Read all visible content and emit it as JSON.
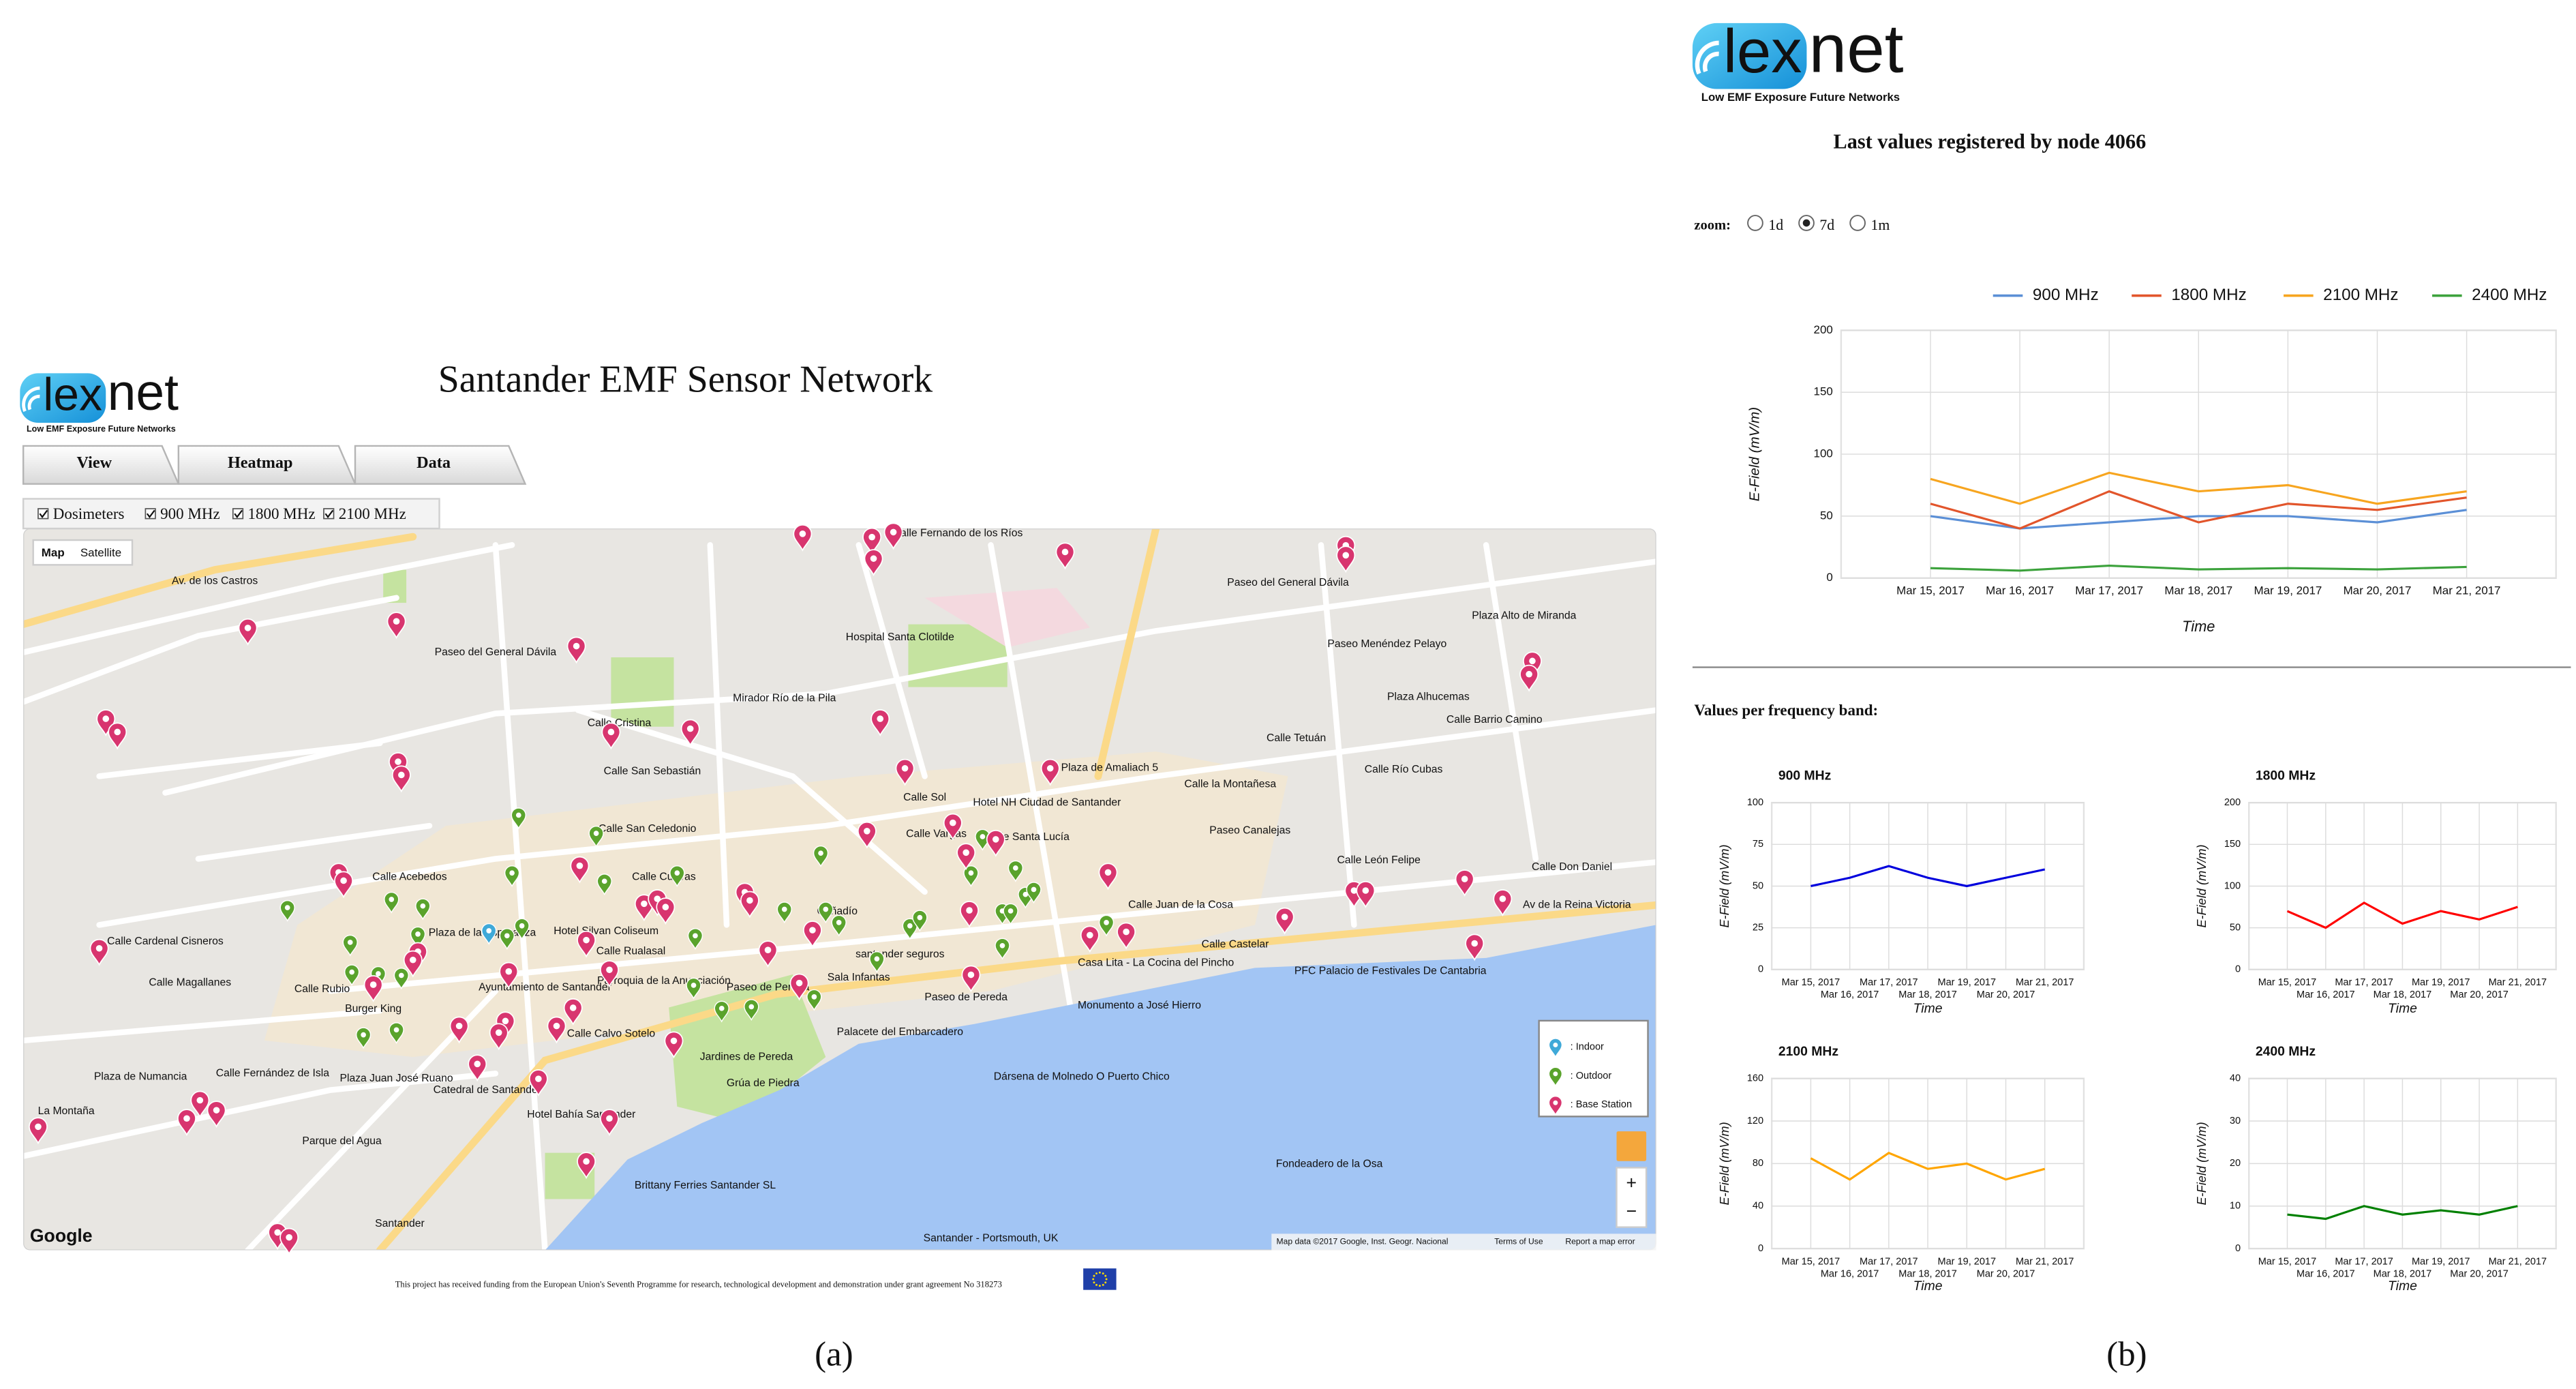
{
  "panel_a": {
    "logo": {
      "mark": "lex",
      "name": "net",
      "tagline": "Low EMF Exposure Future Networks"
    },
    "title": "Santander EMF Sensor Network",
    "tabs": [
      "View",
      "Heatmap",
      "Data"
    ],
    "layers": [
      "Dosimeters",
      "900 MHz",
      "1800 MHz",
      "2100 MHz"
    ],
    "map": {
      "types": [
        "Map",
        "Satellite"
      ],
      "labels": [
        "Av. de los Castros",
        "Calle Fernando de los Ríos",
        "Paseo del General Dávila",
        "Plaza Alto de Miranda",
        "Hospital Santa Clotilde",
        "Paseo Menéndez Pelayo",
        "Paseo del General Dávila",
        "Plaza Alhucemas",
        "Calle Barrio Camino",
        "Mirador Río de la Pila",
        "Calle Tetuán",
        "Plaza de Amaliach 5",
        "Hotel NH Ciudad de Santander",
        "Calle Sol",
        "Calle Río Cubas",
        "Calle la Montañesa",
        "Paseo Canalejas",
        "Calle Santa Lucía",
        "Calle León Felipe",
        "Calle Don Daniel",
        "Calle San Celedonio",
        "Calle Cuevas",
        "Calle Juan de la Cosa",
        "Calle Castelar",
        "Av de la Reina Victoria",
        "Plaza de la Esperanza",
        "Hotel Silvan Coliseum",
        "Calle Rualasal",
        "Cañadío",
        "santander seguros",
        "Sala Infantas",
        "Casa Lita - La Cocina del Pincho",
        "PFC Palacio de Festivales De Cantabria",
        "Ayuntamiento de Santander",
        "Parroquia de la Anunciación",
        "Paseo de Pereda",
        "Monumento a José Hierro",
        "Calle Magallanes",
        "Calle Calvo Sotelo",
        "Palacete del Embarcadero",
        "Jardines de Pereda",
        "Dársena de Molnedo O Puerto Chico",
        "Grúa de Piedra",
        "Plaza de Numancia",
        "Plaza Juan José Ruano",
        "Catedral de Santander",
        "Calle Fernández de Isla",
        "Hotel Bahía Santander",
        "La Montaña",
        "Parque del Agua",
        "Fondeadero de la Osa",
        "Brittany Ferries Santander SL",
        "Santander",
        "Burger King",
        "Calle Rubio",
        "Calle Cardenal Cisneros",
        "Calle Acebedos",
        "Calle Vargas",
        "Santander - Portsmouth, UK",
        "Calle Cristina",
        "Calle San Sebastián",
        "Paseo de Pereda"
      ],
      "legend": [
        ": Indoor",
        ": Outdoor",
        ": Base Station"
      ],
      "zoom": [
        "+",
        "−"
      ],
      "brand": "Google",
      "attribution": "Map data ©2017 Google, Inst. Geogr. Nacional",
      "links": [
        "Terms of Use",
        "Report a map error"
      ]
    },
    "funding": "This project has received funding from the European Union's Seventh Programme for research, technological development and demonstration under grant agreement No 318273",
    "caption": "(a)"
  },
  "panel_b": {
    "logo": {
      "mark": "lex",
      "name": "net",
      "tagline": "Low EMF Exposure Future Networks"
    },
    "zoom_label": "zoom:",
    "zoom_options": [
      "1d",
      "7d",
      "1m"
    ],
    "zoom_selected": "7d",
    "section_title": "Values per frequency band:",
    "caption": "(b)"
  },
  "chart_data": [
    {
      "type": "line",
      "title": "Last values registered by node 4066",
      "y_label": "E-Field (mV/m)",
      "x_label": "Time",
      "x": [
        "2017-03-15",
        "2017-03-16",
        "2017-03-17",
        "2017-03-18",
        "2017-03-19",
        "2017-03-20",
        "2017-03-21"
      ],
      "xlim": [
        "2017-03-14",
        "2017-03-22"
      ],
      "xticks": [
        {
          "value": "2017-03-15",
          "label": "Mar 15, 2017"
        },
        {
          "value": "2017-03-16",
          "label": "Mar 16, 2017"
        },
        {
          "value": "2017-03-17",
          "label": "Mar 17, 2017"
        },
        {
          "value": "2017-03-18",
          "label": "Mar 18, 2017"
        },
        {
          "value": "2017-03-19",
          "label": "Mar 19, 2017"
        },
        {
          "value": "2017-03-20",
          "label": "Mar 20, 2017"
        },
        {
          "value": "2017-03-21",
          "label": "Mar 21, 2017"
        }
      ],
      "ylim": [
        0,
        200
      ],
      "yticks": [
        0,
        50,
        100,
        150,
        200
      ],
      "grid": true,
      "series": [
        {
          "name": "900 MHz",
          "color": "#5b8fd6",
          "values": [
            50,
            40,
            45,
            50,
            50,
            45,
            55
          ]
        },
        {
          "name": "1800 MHz",
          "color": "#e2552b",
          "values": [
            60,
            40,
            70,
            45,
            60,
            55,
            65
          ]
        },
        {
          "name": "2100 MHz",
          "color": "#f7a51f",
          "values": [
            80,
            60,
            85,
            70,
            75,
            60,
            70
          ]
        },
        {
          "name": "2400 MHz",
          "color": "#3ca23c",
          "values": [
            8,
            6,
            10,
            7,
            8,
            7,
            9
          ]
        }
      ]
    },
    {
      "type": "line",
      "title": "900 MHz",
      "y_label": "E-Field (mV/m)",
      "x_label": "Time",
      "x": [
        "2017-03-15",
        "2017-03-16",
        "2017-03-17",
        "2017-03-18",
        "2017-03-19",
        "2017-03-20",
        "2017-03-21"
      ],
      "xlim": [
        "2017-03-14",
        "2017-03-22"
      ],
      "xticks": [
        {
          "value": "2017-03-15",
          "label": "Mar 15, 2017"
        },
        {
          "value": "2017-03-16",
          "label": "Mar 16, 2017"
        },
        {
          "value": "2017-03-17",
          "label": "Mar 17, 2017"
        },
        {
          "value": "2017-03-18",
          "label": "Mar 18, 2017"
        },
        {
          "value": "2017-03-19",
          "label": "Mar 19, 2017"
        },
        {
          "value": "2017-03-20",
          "label": "Mar 20, 2017"
        },
        {
          "value": "2017-03-21",
          "label": "Mar 21, 2017"
        }
      ],
      "ylim": [
        0,
        100
      ],
      "yticks": [
        0,
        25,
        50,
        75,
        100
      ],
      "grid": true,
      "color": "#0000dd",
      "values": [
        50,
        55,
        62,
        55,
        50,
        55,
        60
      ]
    },
    {
      "type": "line",
      "title": "1800 MHz",
      "y_label": "E-Field (mV/m)",
      "x_label": "Time",
      "x": [
        "2017-03-15",
        "2017-03-16",
        "2017-03-17",
        "2017-03-18",
        "2017-03-19",
        "2017-03-20",
        "2017-03-21"
      ],
      "xlim": [
        "2017-03-14",
        "2017-03-22"
      ],
      "xticks": [
        {
          "value": "2017-03-15",
          "label": "Mar 15, 2017"
        },
        {
          "value": "2017-03-16",
          "label": "Mar 16, 2017"
        },
        {
          "value": "2017-03-17",
          "label": "Mar 17, 2017"
        },
        {
          "value": "2017-03-18",
          "label": "Mar 18, 2017"
        },
        {
          "value": "2017-03-19",
          "label": "Mar 19, 2017"
        },
        {
          "value": "2017-03-20",
          "label": "Mar 20, 2017"
        },
        {
          "value": "2017-03-21",
          "label": "Mar 21, 2017"
        }
      ],
      "ylim": [
        0,
        200
      ],
      "yticks": [
        0,
        50,
        100,
        150,
        200
      ],
      "grid": true,
      "color": "#ff0000",
      "values": [
        70,
        50,
        80,
        55,
        70,
        60,
        75
      ]
    },
    {
      "type": "line",
      "title": "2100 MHz",
      "y_label": "E-Field (mV/m)",
      "x_label": "Time",
      "x": [
        "2017-03-15",
        "2017-03-16",
        "2017-03-17",
        "2017-03-18",
        "2017-03-19",
        "2017-03-20",
        "2017-03-21"
      ],
      "xlim": [
        "2017-03-14",
        "2017-03-22"
      ],
      "xticks": [
        {
          "value": "2017-03-15",
          "label": "Mar 15, 2017"
        },
        {
          "value": "2017-03-16",
          "label": "Mar 16, 2017"
        },
        {
          "value": "2017-03-17",
          "label": "Mar 17, 2017"
        },
        {
          "value": "2017-03-18",
          "label": "Mar 18, 2017"
        },
        {
          "value": "2017-03-19",
          "label": "Mar 19, 2017"
        },
        {
          "value": "2017-03-20",
          "label": "Mar 20, 2017"
        },
        {
          "value": "2017-03-21",
          "label": "Mar 21, 2017"
        }
      ],
      "ylim": [
        0,
        160
      ],
      "yticks": [
        0,
        40,
        80,
        120,
        160
      ],
      "grid": true,
      "color": "#ffa500",
      "values": [
        85,
        65,
        90,
        75,
        80,
        65,
        75
      ]
    },
    {
      "type": "line",
      "title": "2400 MHz",
      "y_label": "E-Field (mV/m)",
      "x_label": "Time",
      "x": [
        "2017-03-15",
        "2017-03-16",
        "2017-03-17",
        "2017-03-18",
        "2017-03-19",
        "2017-03-20",
        "2017-03-21"
      ],
      "xlim": [
        "2017-03-14",
        "2017-03-22"
      ],
      "xticks": [
        {
          "value": "2017-03-15",
          "label": "Mar 15, 2017"
        },
        {
          "value": "2017-03-16",
          "label": "Mar 16, 2017"
        },
        {
          "value": "2017-03-17",
          "label": "Mar 17, 2017"
        },
        {
          "value": "2017-03-18",
          "label": "Mar 18, 2017"
        },
        {
          "value": "2017-03-19",
          "label": "Mar 19, 2017"
        },
        {
          "value": "2017-03-20",
          "label": "Mar 20, 2017"
        },
        {
          "value": "2017-03-21",
          "label": "Mar 21, 2017"
        }
      ],
      "ylim": [
        0,
        40
      ],
      "yticks": [
        0,
        10,
        20,
        30,
        40
      ],
      "grid": true,
      "color": "#008000",
      "values": [
        8,
        7,
        10,
        8,
        9,
        8,
        10
      ]
    }
  ]
}
